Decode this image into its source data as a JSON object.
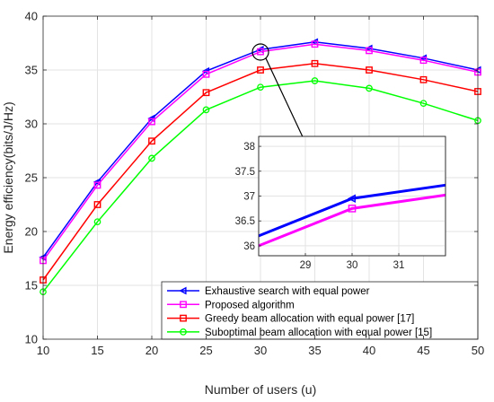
{
  "chart_data": {
    "type": "line",
    "xlabel": "Number of users (u)",
    "ylabel": "Energy efficiency(bits/J/Hz)",
    "x": [
      10,
      15,
      20,
      25,
      30,
      35,
      40,
      45,
      50
    ],
    "xlim": [
      10,
      50
    ],
    "ylim": [
      10,
      40
    ],
    "xticks": [
      "10",
      "15",
      "20",
      "25",
      "30",
      "35",
      "40",
      "45",
      "50"
    ],
    "yticks": [
      "10",
      "15",
      "20",
      "25",
      "30",
      "35",
      "40"
    ],
    "grid": true,
    "legend_position": "bottom-right",
    "series": [
      {
        "name": "Exhaustive search with equal power",
        "color": "#0000ff",
        "marker": "left-triangle",
        "values": [
          17.6,
          24.6,
          30.5,
          34.9,
          36.9,
          37.6,
          37.0,
          36.1,
          35.0
        ]
      },
      {
        "name": "Proposed algorithm",
        "color": "#ff00ff",
        "marker": "square",
        "values": [
          17.3,
          24.3,
          30.2,
          34.6,
          36.7,
          37.4,
          36.8,
          35.9,
          34.8
        ]
      },
      {
        "name": "Greedy beam allocation with equal power [17]",
        "color": "#ff0000",
        "marker": "square",
        "values": [
          15.5,
          22.5,
          28.4,
          32.9,
          35.0,
          35.6,
          35.0,
          34.1,
          33.0
        ]
      },
      {
        "name": "Suboptimal beam allocation with equal power [15]",
        "color": "#00ff00",
        "marker": "circle",
        "values": [
          14.4,
          20.9,
          26.8,
          31.3,
          33.4,
          34.0,
          33.3,
          31.9,
          30.3
        ]
      }
    ],
    "inset": {
      "xlim": [
        28,
        32
      ],
      "ylim": [
        35.8,
        38.2
      ],
      "xticks": [
        "29",
        "30",
        "31"
      ],
      "yticks": [
        "36",
        "36.5",
        "37",
        "37.5",
        "38"
      ],
      "grid": true,
      "series": [
        {
          "name": "Exhaustive search with equal power",
          "color": "#0000ff",
          "x": [
            28,
            30,
            32
          ],
          "values": [
            36.2,
            36.95,
            37.22
          ]
        },
        {
          "name": "Proposed algorithm",
          "color": "#ff00ff",
          "x": [
            28,
            30,
            32
          ],
          "values": [
            36.0,
            36.75,
            37.02
          ]
        }
      ]
    }
  }
}
